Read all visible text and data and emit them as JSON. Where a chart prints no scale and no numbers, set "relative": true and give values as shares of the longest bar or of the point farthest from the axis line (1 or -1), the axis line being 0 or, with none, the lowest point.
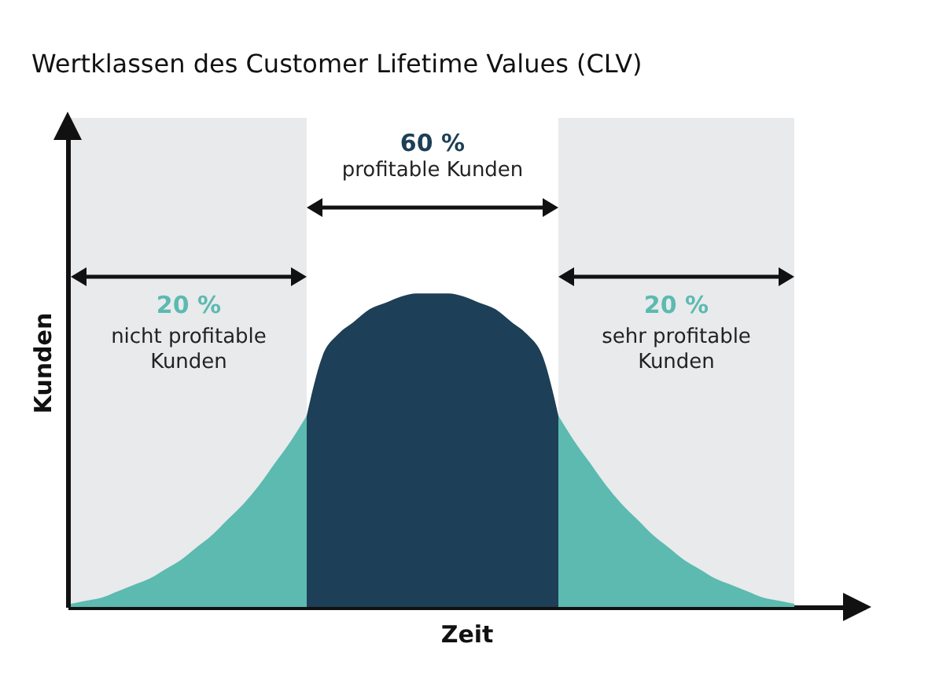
{
  "chart_data": {
    "type": "area",
    "title": "Wertklassen des Customer Lifetime Values (CLV)",
    "xlabel": "Zeit",
    "ylabel": "Kunden",
    "relative": true,
    "tick_labels": false,
    "categories": [
      null,
      null,
      null,
      null,
      null,
      null,
      null,
      null,
      null,
      null,
      null,
      null,
      null,
      null,
      null,
      null,
      null,
      null,
      null,
      null,
      null,
      null,
      null,
      null,
      null,
      null,
      null,
      null,
      null,
      null,
      null,
      null,
      null,
      null,
      null,
      null,
      null,
      null,
      null,
      null,
      null,
      null,
      null,
      null,
      null,
      null,
      null
    ],
    "series": [
      {
        "color": "#5cbab0",
        "values": [
          0.01,
          0.02,
          0.03,
          0.05,
          0.07,
          0.09,
          0.12,
          0.15,
          0.19,
          0.23,
          0.28,
          0.33,
          0.39,
          0.46,
          0.53,
          0.61,
          null,
          null,
          null,
          null,
          null,
          null,
          null,
          null,
          null,
          null,
          null,
          null,
          null,
          null,
          null,
          null,
          null,
          null,
          null,
          null,
          null,
          null,
          null,
          null,
          null,
          null,
          null,
          null,
          null,
          null,
          null
        ]
      },
      {
        "color": "#1d3f57",
        "values": [
          null,
          null,
          null,
          null,
          null,
          null,
          null,
          null,
          null,
          null,
          null,
          null,
          null,
          null,
          null,
          0.61,
          0.8,
          0.87,
          0.91,
          0.95,
          0.97,
          0.99,
          1,
          1,
          1,
          0.99,
          0.97,
          0.95,
          0.91,
          0.87,
          0.8,
          0.61,
          null,
          null,
          null,
          null,
          null,
          null,
          null,
          null,
          null,
          null,
          null,
          null,
          null,
          null,
          null
        ]
      },
      {
        "color": "#5cbab0",
        "values": [
          null,
          null,
          null,
          null,
          null,
          null,
          null,
          null,
          null,
          null,
          null,
          null,
          null,
          null,
          null,
          null,
          null,
          null,
          null,
          null,
          null,
          null,
          null,
          null,
          null,
          null,
          null,
          null,
          null,
          null,
          null,
          0.61,
          0.53,
          0.46,
          0.39,
          0.33,
          0.28,
          0.23,
          0.19,
          0.15,
          0.12,
          0.09,
          0.07,
          0.05,
          0.03,
          0.02,
          0.01
        ]
      }
    ],
    "annotations": [
      "20 %",
      "nicht profitable Kunden",
      "60 %",
      "profitable Kunden",
      "20 %",
      "sehr profitable Kunden"
    ]
  }
}
